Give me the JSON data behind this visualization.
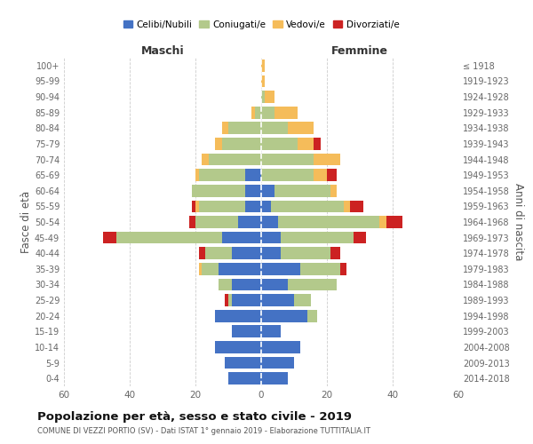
{
  "age_groups": [
    "0-4",
    "5-9",
    "10-14",
    "15-19",
    "20-24",
    "25-29",
    "30-34",
    "35-39",
    "40-44",
    "45-49",
    "50-54",
    "55-59",
    "60-64",
    "65-69",
    "70-74",
    "75-79",
    "80-84",
    "85-89",
    "90-94",
    "95-99",
    "100+"
  ],
  "birth_years": [
    "2014-2018",
    "2009-2013",
    "2004-2008",
    "1999-2003",
    "1994-1998",
    "1989-1993",
    "1984-1988",
    "1979-1983",
    "1974-1978",
    "1969-1973",
    "1964-1968",
    "1959-1963",
    "1954-1958",
    "1949-1953",
    "1944-1948",
    "1939-1943",
    "1934-1938",
    "1929-1933",
    "1924-1928",
    "1919-1923",
    "≤ 1918"
  ],
  "maschi": {
    "celibi": [
      10,
      11,
      14,
      9,
      14,
      9,
      9,
      13,
      9,
      12,
      7,
      5,
      5,
      5,
      0,
      0,
      0,
      0,
      0,
      0,
      0
    ],
    "coniugati": [
      0,
      0,
      0,
      0,
      0,
      1,
      4,
      5,
      8,
      32,
      13,
      14,
      16,
      14,
      16,
      12,
      10,
      2,
      0,
      0,
      0
    ],
    "vedovi": [
      0,
      0,
      0,
      0,
      0,
      0,
      0,
      1,
      0,
      0,
      0,
      1,
      0,
      1,
      2,
      2,
      2,
      1,
      0,
      0,
      0
    ],
    "divorziati": [
      0,
      0,
      0,
      0,
      0,
      1,
      0,
      0,
      2,
      4,
      2,
      1,
      0,
      0,
      0,
      0,
      0,
      0,
      0,
      0,
      0
    ]
  },
  "femmine": {
    "nubili": [
      8,
      10,
      12,
      6,
      14,
      10,
      8,
      12,
      6,
      6,
      5,
      3,
      4,
      0,
      0,
      0,
      0,
      0,
      0,
      0,
      0
    ],
    "coniugate": [
      0,
      0,
      0,
      0,
      3,
      5,
      15,
      12,
      15,
      22,
      31,
      22,
      17,
      16,
      16,
      11,
      8,
      4,
      1,
      0,
      0
    ],
    "vedove": [
      0,
      0,
      0,
      0,
      0,
      0,
      0,
      0,
      0,
      0,
      2,
      2,
      2,
      4,
      8,
      5,
      8,
      7,
      3,
      1,
      1
    ],
    "divorziate": [
      0,
      0,
      0,
      0,
      0,
      0,
      0,
      2,
      3,
      4,
      5,
      4,
      0,
      3,
      0,
      2,
      0,
      0,
      0,
      0,
      0
    ]
  },
  "colors": {
    "celibi": "#4472c4",
    "coniugati": "#b3c98b",
    "vedovi": "#f5bc5a",
    "divorziati": "#cc2222"
  },
  "xlim": 60,
  "title": "Popolazione per età, sesso e stato civile - 2019",
  "subtitle": "COMUNE DI VEZZI PORTIO (SV) - Dati ISTAT 1° gennaio 2019 - Elaborazione TUTTITALIA.IT",
  "ylabel_left": "Fasce di età",
  "ylabel_right": "Anni di nascita",
  "legend_labels": [
    "Celibi/Nubili",
    "Coniugati/e",
    "Vedovi/e",
    "Divorziati/e"
  ]
}
